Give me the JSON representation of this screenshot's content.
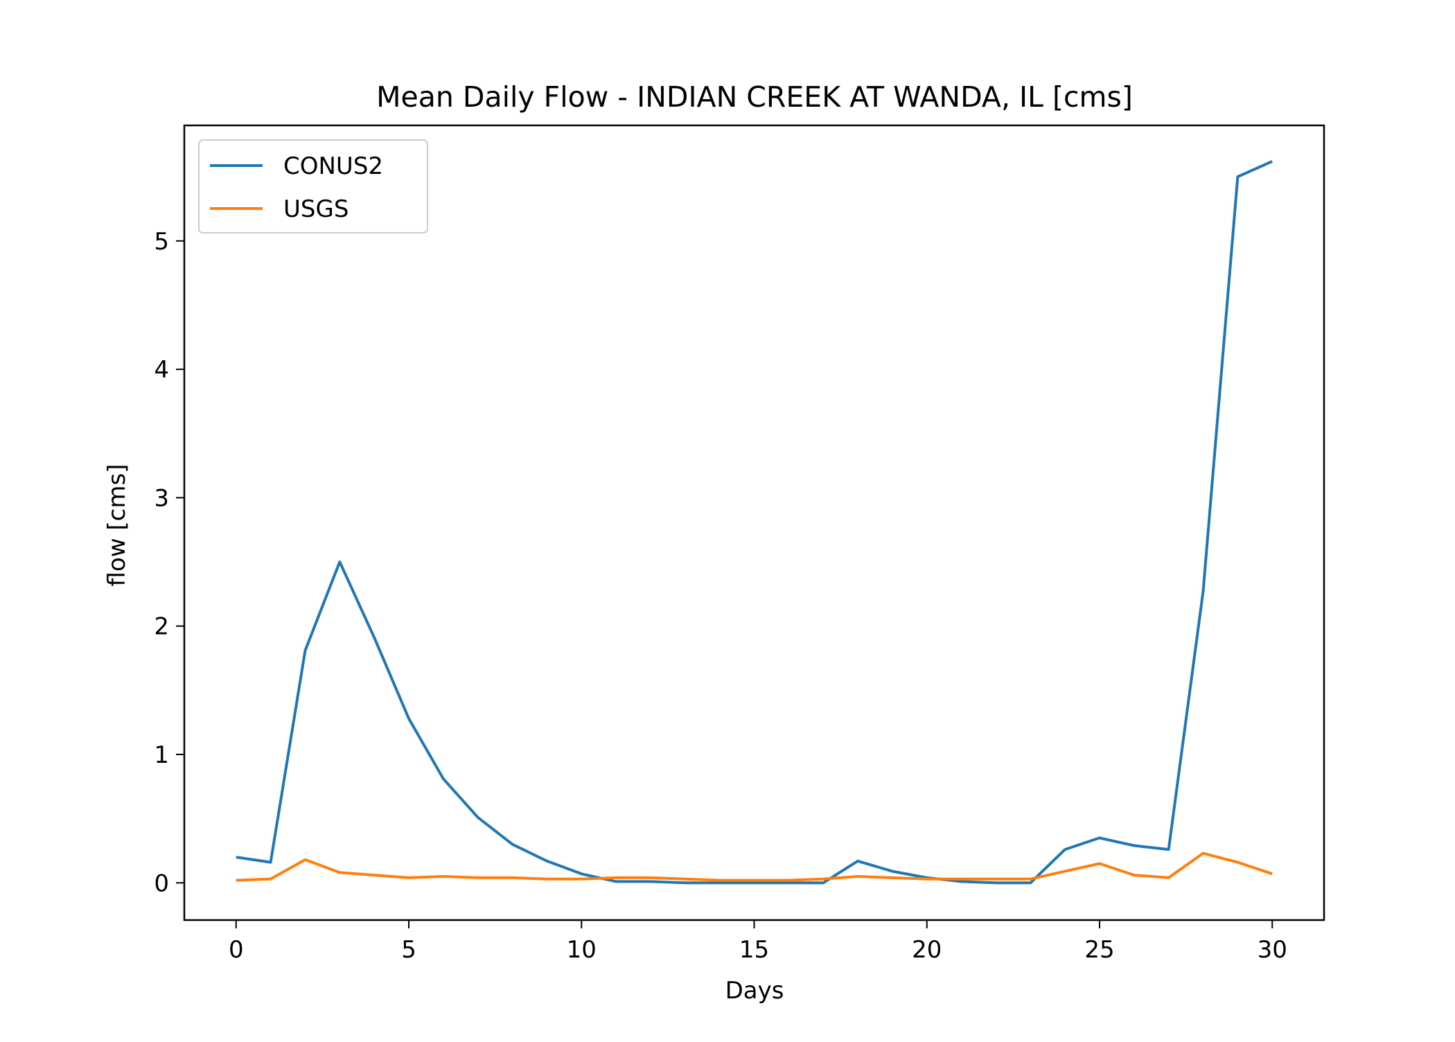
{
  "chart_data": {
    "type": "line",
    "title": "Mean Daily Flow - INDIAN CREEK AT WANDA, IL [cms]",
    "xlabel": "Days",
    "ylabel": "flow [cms]",
    "xlim": [
      -1.5,
      31.5
    ],
    "ylim": [
      -0.29,
      5.9
    ],
    "xticks": [
      0,
      5,
      10,
      15,
      20,
      25,
      30
    ],
    "yticks": [
      0,
      1,
      2,
      3,
      4,
      5
    ],
    "grid": false,
    "legend_position": "upper left",
    "x": [
      0,
      1,
      2,
      3,
      4,
      5,
      6,
      7,
      8,
      9,
      10,
      11,
      12,
      13,
      14,
      15,
      16,
      17,
      18,
      19,
      20,
      21,
      22,
      23,
      24,
      25,
      26,
      27,
      28,
      29,
      30
    ],
    "series": [
      {
        "name": "CONUS2",
        "color": "#1f77b4",
        "values": [
          0.2,
          0.16,
          1.81,
          2.5,
          1.91,
          1.28,
          0.81,
          0.51,
          0.3,
          0.17,
          0.07,
          0.01,
          0.01,
          0.0,
          0.0,
          0.0,
          0.0,
          0.0,
          0.17,
          0.09,
          0.04,
          0.01,
          0.0,
          0.0,
          0.26,
          0.35,
          0.29,
          0.26,
          2.27,
          5.5,
          5.62
        ]
      },
      {
        "name": "USGS",
        "color": "#ff7f0e",
        "values": [
          0.02,
          0.03,
          0.18,
          0.08,
          0.06,
          0.04,
          0.05,
          0.04,
          0.04,
          0.03,
          0.03,
          0.04,
          0.04,
          0.03,
          0.02,
          0.02,
          0.02,
          0.03,
          0.05,
          0.04,
          0.03,
          0.03,
          0.03,
          0.03,
          0.09,
          0.15,
          0.06,
          0.04,
          0.23,
          0.16,
          0.07
        ]
      }
    ]
  }
}
